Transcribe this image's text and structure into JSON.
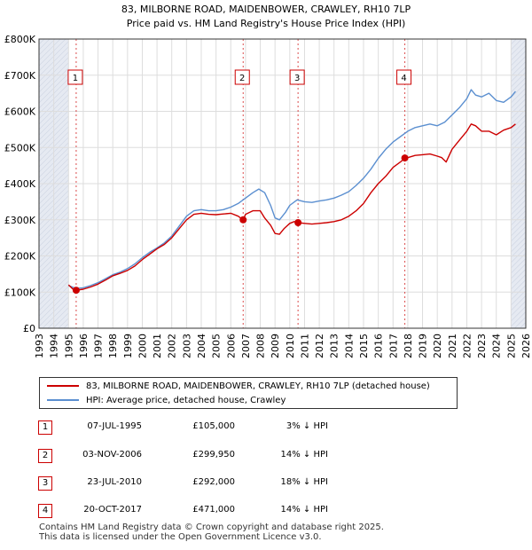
{
  "colors": {
    "property_line": "#cc0000",
    "hpi_line": "#5b8fd0",
    "grid": "#dddddd",
    "shade": "#e6eaf2",
    "marker_border": "#cc0000",
    "vline": "#cc0000"
  },
  "chart_data": {
    "type": "line",
    "title": "83, MILBORNE ROAD, MAIDENBOWER, CRAWLEY, RH10 7LP",
    "subtitle": "Price paid vs. HM Land Registry's House Price Index (HPI)",
    "xlabel": "",
    "ylabel": "",
    "xlim": [
      1993,
      2026
    ],
    "ylim": [
      0,
      800000
    ],
    "x_ticks": [
      "1993",
      "1994",
      "1995",
      "1996",
      "1997",
      "1998",
      "1999",
      "2000",
      "2001",
      "2002",
      "2003",
      "2004",
      "2005",
      "2006",
      "2007",
      "2008",
      "2009",
      "2010",
      "2011",
      "2012",
      "2013",
      "2014",
      "2015",
      "2016",
      "2017",
      "2018",
      "2019",
      "2020",
      "2021",
      "2022",
      "2023",
      "2024",
      "2025",
      "2026"
    ],
    "y_ticks": [
      {
        "value": 0,
        "label": "£0"
      },
      {
        "value": 100000,
        "label": "£100K"
      },
      {
        "value": 200000,
        "label": "£200K"
      },
      {
        "value": 300000,
        "label": "£300K"
      },
      {
        "value": 400000,
        "label": "£400K"
      },
      {
        "value": 500000,
        "label": "£500K"
      },
      {
        "value": 600000,
        "label": "£600K"
      },
      {
        "value": 700000,
        "label": "£700K"
      },
      {
        "value": 800000,
        "label": "£800K"
      }
    ],
    "shaded_ranges": [
      [
        1993,
        1995.0
      ],
      [
        2025.0,
        2026
      ]
    ],
    "series": [
      {
        "name": "83, MILBORNE ROAD, MAIDENBOWER, CRAWLEY, RH10 7LP (detached house)",
        "x": [
          1995.0,
          1995.3,
          1995.52,
          1996,
          1996.5,
          1997,
          1997.5,
          1998,
          1998.5,
          1999,
          1999.5,
          2000,
          2000.5,
          2001,
          2001.5,
          2002,
          2002.5,
          2003,
          2003.5,
          2004,
          2004.5,
          2005,
          2005.5,
          2006,
          2006.5,
          2006.84,
          2007,
          2007.5,
          2008,
          2008.3,
          2008.7,
          2009,
          2009.3,
          2009.6,
          2010,
          2010.3,
          2010.56,
          2011,
          2011.5,
          2012,
          2012.5,
          2013,
          2013.5,
          2014,
          2014.5,
          2015,
          2015.5,
          2016,
          2016.5,
          2017,
          2017.5,
          2017.8,
          2018,
          2018.5,
          2019,
          2019.5,
          2020,
          2020.3,
          2020.6,
          2021,
          2021.5,
          2022,
          2022.3,
          2022.6,
          2023,
          2023.5,
          2024,
          2024.5,
          2025,
          2025.3
        ],
        "values": [
          120000,
          108000,
          105000,
          108000,
          114000,
          122000,
          133000,
          145000,
          152000,
          160000,
          172000,
          190000,
          205000,
          220000,
          232000,
          250000,
          275000,
          300000,
          315000,
          318000,
          315000,
          314000,
          316000,
          318000,
          310000,
          299950,
          315000,
          325000,
          325000,
          305000,
          285000,
          262000,
          260000,
          275000,
          290000,
          295000,
          292000,
          290000,
          288000,
          290000,
          292000,
          295000,
          300000,
          310000,
          325000,
          345000,
          375000,
          400000,
          420000,
          445000,
          460000,
          471000,
          472000,
          478000,
          480000,
          482000,
          476000,
          472000,
          460000,
          495000,
          520000,
          545000,
          565000,
          560000,
          545000,
          545000,
          535000,
          548000,
          555000,
          565000
        ]
      },
      {
        "name": "HPI: Average price, detached house, Crawley",
        "x": [
          1995.0,
          1995.5,
          1996,
          1996.5,
          1997,
          1997.5,
          1998,
          1998.5,
          1999,
          1999.5,
          2000,
          2000.5,
          2001,
          2001.5,
          2002,
          2002.5,
          2003,
          2003.5,
          2004,
          2004.5,
          2005,
          2005.5,
          2006,
          2006.5,
          2007,
          2007.5,
          2007.9,
          2008.3,
          2008.7,
          2009,
          2009.3,
          2009.7,
          2010,
          2010.5,
          2011,
          2011.5,
          2012,
          2012.5,
          2013,
          2013.5,
          2014,
          2014.5,
          2015,
          2015.5,
          2016,
          2016.5,
          2017,
          2017.5,
          2018,
          2018.5,
          2019,
          2019.5,
          2020,
          2020.5,
          2021,
          2021.5,
          2022,
          2022.3,
          2022.6,
          2023,
          2023.5,
          2024,
          2024.5,
          2025,
          2025.3
        ],
        "values": [
          118000,
          110000,
          112000,
          118000,
          126000,
          137000,
          148000,
          155000,
          165000,
          178000,
          195000,
          210000,
          222000,
          236000,
          255000,
          282000,
          310000,
          325000,
          328000,
          325000,
          325000,
          328000,
          335000,
          345000,
          360000,
          375000,
          385000,
          375000,
          340000,
          305000,
          300000,
          320000,
          340000,
          355000,
          350000,
          348000,
          352000,
          355000,
          360000,
          368000,
          378000,
          395000,
          415000,
          440000,
          470000,
          495000,
          515000,
          530000,
          545000,
          555000,
          560000,
          565000,
          560000,
          570000,
          590000,
          610000,
          635000,
          660000,
          645000,
          640000,
          650000,
          630000,
          625000,
          640000,
          655000
        ]
      }
    ],
    "markers": [
      {
        "id": "1",
        "x": 1995.52,
        "y": 105000
      },
      {
        "id": "2",
        "x": 2006.84,
        "y": 299950
      },
      {
        "id": "3",
        "x": 2010.56,
        "y": 292000
      },
      {
        "id": "4",
        "x": 2017.8,
        "y": 471000
      }
    ]
  },
  "legend": {
    "property_label": "83, MILBORNE ROAD, MAIDENBOWER, CRAWLEY, RH10 7LP (detached house)",
    "hpi_label": "HPI: Average price, detached house, Crawley"
  },
  "transactions": [
    {
      "id": "1",
      "date": "07-JUL-1995",
      "price": "£105,000",
      "hpi": "3% ↓ HPI"
    },
    {
      "id": "2",
      "date": "03-NOV-2006",
      "price": "£299,950",
      "hpi": "14% ↓ HPI"
    },
    {
      "id": "3",
      "date": "23-JUL-2010",
      "price": "£292,000",
      "hpi": "18% ↓ HPI"
    },
    {
      "id": "4",
      "date": "20-OCT-2017",
      "price": "£471,000",
      "hpi": "14% ↓ HPI"
    }
  ],
  "footer": {
    "line1": "Contains HM Land Registry data © Crown copyright and database right 2025.",
    "line2": "This data is licensed under the Open Government Licence v3.0."
  }
}
